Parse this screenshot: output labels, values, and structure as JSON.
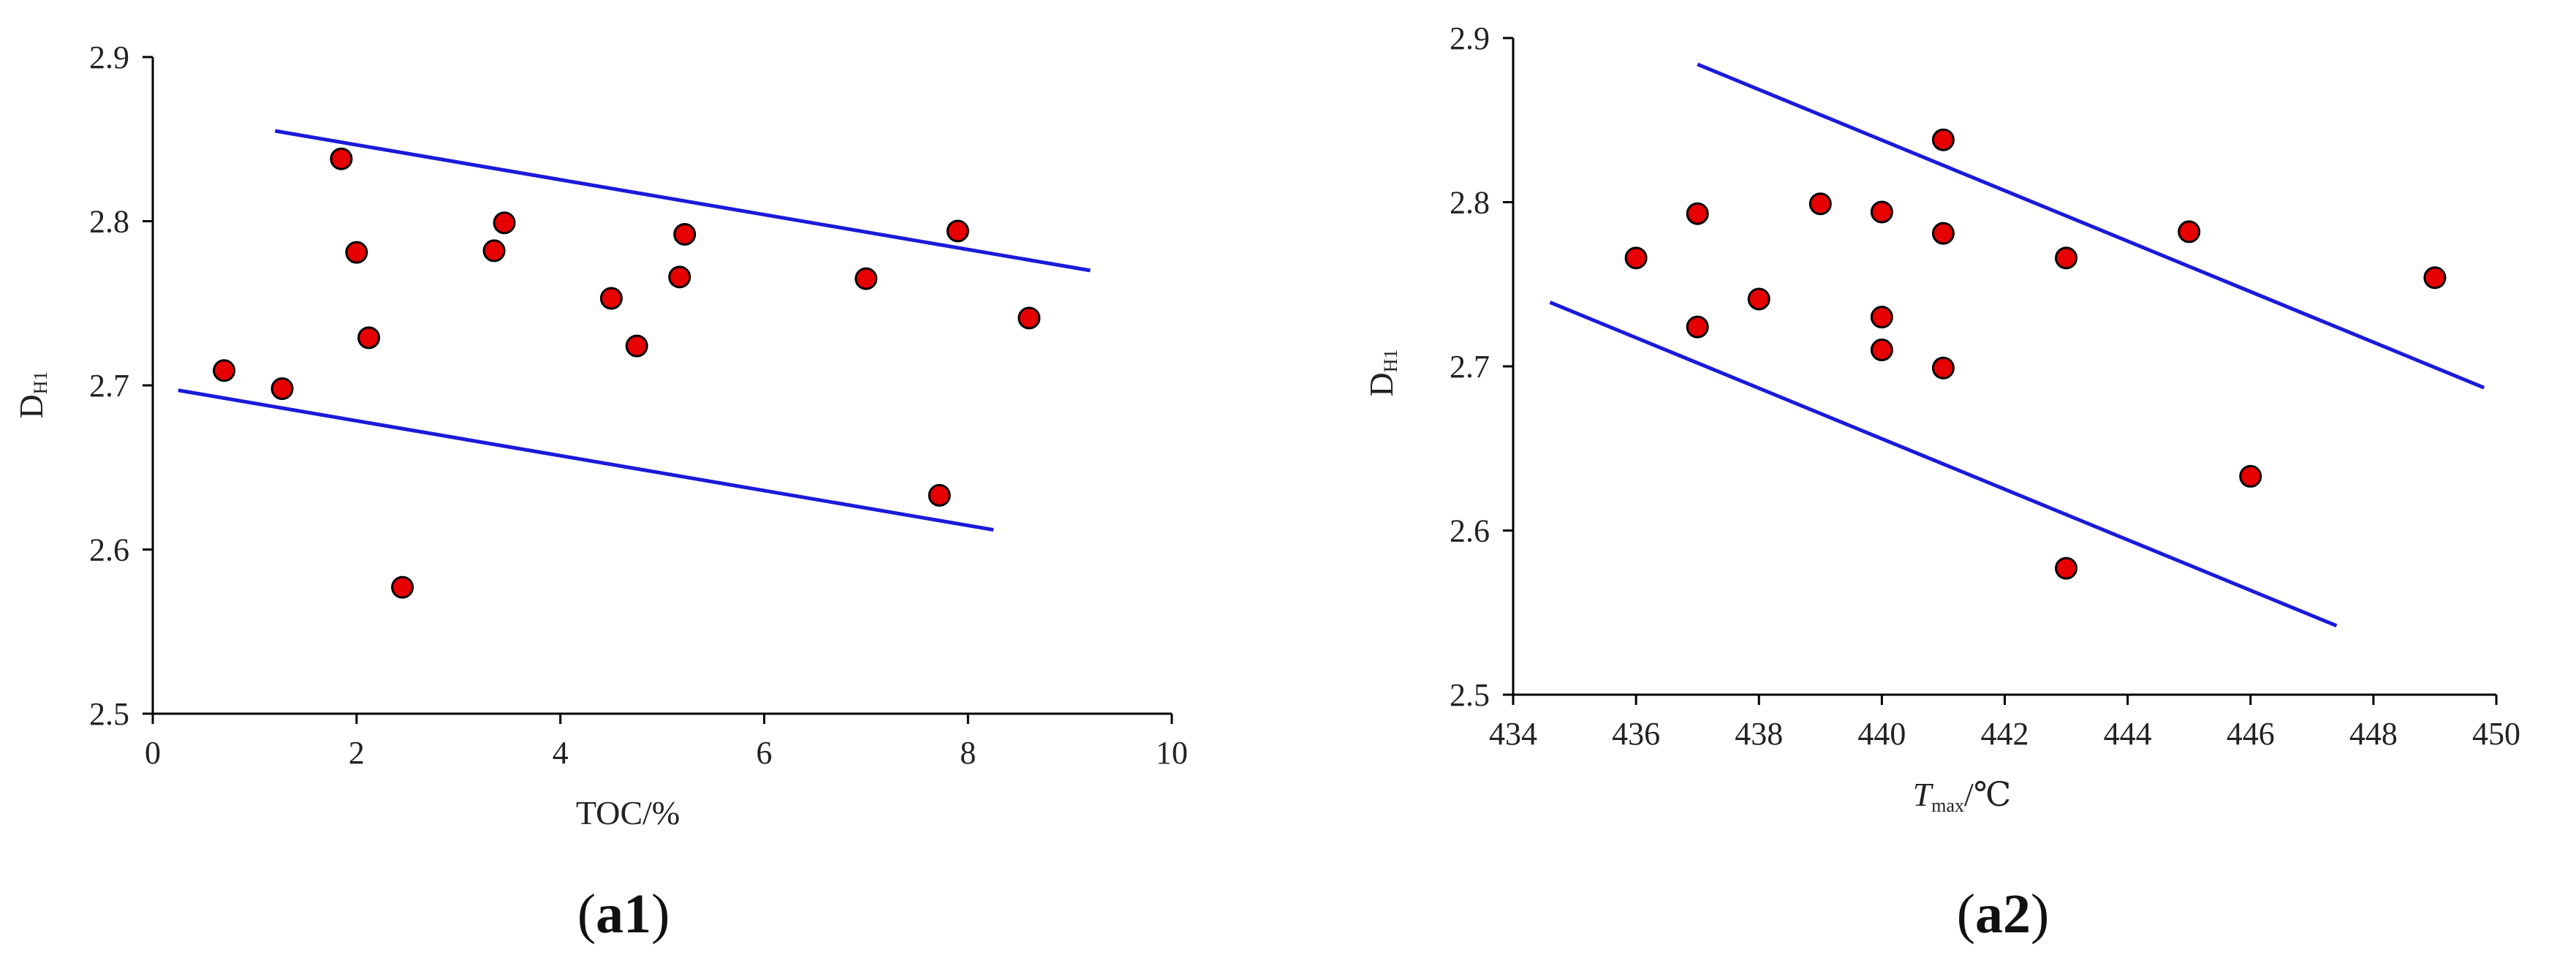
{
  "chart_data": [
    {
      "type": "scatter",
      "panel_label": {
        "open": "(",
        "id": "a1",
        "close": ")"
      },
      "title": "",
      "xlabel": {
        "main": "TOC/%",
        "sub": ""
      },
      "ylabel": {
        "main": "D",
        "sub": "H1"
      },
      "xlim": [
        0,
        10
      ],
      "ylim": [
        2.5,
        2.9
      ],
      "xticks": [
        "0",
        "2",
        "4",
        "6",
        "8",
        "10"
      ],
      "yticks": [
        "2.5",
        "2.6",
        "2.7",
        "2.8",
        "2.9"
      ],
      "marker_color": "#e60000",
      "line_color": "#1a1adb",
      "points": [
        {
          "x": 0.7,
          "y": 2.709
        },
        {
          "x": 1.27,
          "y": 2.698
        },
        {
          "x": 1.85,
          "y": 2.838
        },
        {
          "x": 2.0,
          "y": 2.781
        },
        {
          "x": 2.12,
          "y": 2.729
        },
        {
          "x": 2.45,
          "y": 2.577
        },
        {
          "x": 3.35,
          "y": 2.782
        },
        {
          "x": 3.45,
          "y": 2.799
        },
        {
          "x": 4.5,
          "y": 2.753
        },
        {
          "x": 4.75,
          "y": 2.724
        },
        {
          "x": 5.17,
          "y": 2.766
        },
        {
          "x": 5.22,
          "y": 2.792
        },
        {
          "x": 7.0,
          "y": 2.765
        },
        {
          "x": 7.72,
          "y": 2.633
        },
        {
          "x": 7.9,
          "y": 2.794
        },
        {
          "x": 8.6,
          "y": 2.741
        }
      ],
      "lines": [
        {
          "x": [
            1.2,
            9.2
          ],
          "y": [
            2.855,
            2.77
          ]
        },
        {
          "x": [
            0.25,
            8.25
          ],
          "y": [
            2.697,
            2.612
          ]
        }
      ]
    },
    {
      "type": "scatter",
      "panel_label": {
        "open": "(",
        "id": "a2",
        "close": ")"
      },
      "title": "",
      "xlabel": {
        "main": "T",
        "sub": "max",
        "tail": "/℃"
      },
      "ylabel": {
        "main": "D",
        "sub": "H1"
      },
      "xlim": [
        434,
        450
      ],
      "ylim": [
        2.5,
        2.9
      ],
      "xticks": [
        "434",
        "436",
        "438",
        "440",
        "442",
        "444",
        "446",
        "448",
        "450"
      ],
      "yticks": [
        "2.5",
        "2.6",
        "2.7",
        "2.8",
        "2.9"
      ],
      "marker_color": "#e60000",
      "line_color": "#1a1adb",
      "points": [
        {
          "x": 436,
          "y": 2.766
        },
        {
          "x": 437,
          "y": 2.793
        },
        {
          "x": 437,
          "y": 2.724
        },
        {
          "x": 438,
          "y": 2.741
        },
        {
          "x": 439,
          "y": 2.799
        },
        {
          "x": 440,
          "y": 2.794
        },
        {
          "x": 440,
          "y": 2.73
        },
        {
          "x": 440,
          "y": 2.71
        },
        {
          "x": 441,
          "y": 2.838
        },
        {
          "x": 441,
          "y": 2.781
        },
        {
          "x": 441,
          "y": 2.699
        },
        {
          "x": 443,
          "y": 2.766
        },
        {
          "x": 443,
          "y": 2.577
        },
        {
          "x": 445,
          "y": 2.782
        },
        {
          "x": 446,
          "y": 2.633
        },
        {
          "x": 449,
          "y": 2.754
        }
      ],
      "lines": [
        {
          "x": [
            437.0,
            449.8
          ],
          "y": [
            2.884,
            2.687
          ]
        },
        {
          "x": [
            434.6,
            447.4
          ],
          "y": [
            2.739,
            2.542
          ]
        }
      ]
    }
  ]
}
